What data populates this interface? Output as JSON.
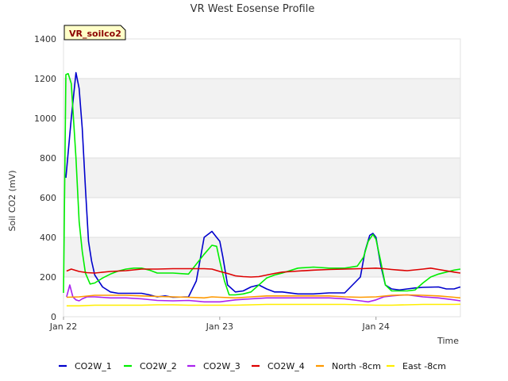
{
  "chart_data": {
    "type": "line",
    "title": "VR West Eosense Profile",
    "badge": "VR_soilco2",
    "xlabel": "Time",
    "ylabel": "Soil CO2 (mV)",
    "xlim": [
      0,
      2.54
    ],
    "ylim": [
      0,
      1400
    ],
    "yticks": [
      0,
      200,
      400,
      600,
      800,
      1000,
      1200,
      1400
    ],
    "xticks": [
      {
        "value": 0,
        "label": "Jan 22"
      },
      {
        "value": 1,
        "label": "Jan 23"
      },
      {
        "value": 2,
        "label": "Jan 24"
      }
    ],
    "bands": [
      [
        200,
        400
      ],
      [
        600,
        800
      ],
      [
        1000,
        1200
      ]
    ],
    "colors": {
      "band": "#f2f2f2",
      "grid": "#dddddd",
      "axis": "#999999",
      "badge_bg": "#ffffc8"
    },
    "series": [
      {
        "name": "CO2W_1",
        "color": "#0000cc",
        "x": [
          0.015,
          0.05,
          0.08,
          0.1,
          0.12,
          0.14,
          0.16,
          0.18,
          0.2,
          0.25,
          0.3,
          0.35,
          0.4,
          0.5,
          0.55,
          0.6,
          0.65,
          0.7,
          0.8,
          0.85,
          0.9,
          0.95,
          0.97,
          1.0,
          1.02,
          1.05,
          1.1,
          1.15,
          1.2,
          1.25,
          1.3,
          1.35,
          1.4,
          1.5,
          1.6,
          1.7,
          1.8,
          1.9,
          1.93,
          1.96,
          1.98,
          2.0,
          2.03,
          2.06,
          2.1,
          2.15,
          2.2,
          2.25,
          2.3,
          2.4,
          2.45,
          2.5,
          2.54
        ],
        "y": [
          700,
          1000,
          1230,
          1150,
          950,
          650,
          380,
          280,
          210,
          150,
          125,
          118,
          118,
          118,
          110,
          100,
          105,
          98,
          100,
          180,
          400,
          430,
          410,
          380,
          300,
          160,
          125,
          130,
          150,
          160,
          140,
          125,
          125,
          115,
          115,
          120,
          120,
          200,
          330,
          410,
          420,
          400,
          260,
          160,
          140,
          135,
          140,
          145,
          148,
          150,
          140,
          140,
          150
        ]
      },
      {
        "name": "CO2W_2",
        "color": "#00ee00",
        "x": [
          0,
          0.015,
          0.03,
          0.05,
          0.08,
          0.1,
          0.12,
          0.14,
          0.17,
          0.2,
          0.25,
          0.3,
          0.35,
          0.4,
          0.45,
          0.5,
          0.55,
          0.6,
          0.7,
          0.8,
          0.9,
          0.95,
          0.98,
          1.0,
          1.03,
          1.06,
          1.1,
          1.15,
          1.2,
          1.25,
          1.3,
          1.35,
          1.4,
          1.5,
          1.6,
          1.7,
          1.8,
          1.88,
          1.92,
          1.95,
          1.98,
          2.0,
          2.03,
          2.06,
          2.1,
          2.15,
          2.2,
          2.25,
          2.3,
          2.35,
          2.4,
          2.45,
          2.5,
          2.54
        ],
        "y": [
          120,
          1220,
          1225,
          1175,
          800,
          480,
          330,
          220,
          165,
          170,
          195,
          215,
          230,
          240,
          245,
          245,
          235,
          220,
          220,
          215,
          315,
          360,
          355,
          280,
          180,
          110,
          110,
          115,
          125,
          160,
          195,
          210,
          220,
          245,
          250,
          245,
          245,
          255,
          300,
          380,
          415,
          390,
          280,
          160,
          130,
          130,
          130,
          135,
          170,
          200,
          215,
          225,
          235,
          240
        ]
      },
      {
        "name": "CO2W_3",
        "color": "#aa22ee",
        "x": [
          0.02,
          0.04,
          0.06,
          0.08,
          0.1,
          0.12,
          0.15,
          0.2,
          0.3,
          0.4,
          0.5,
          0.6,
          0.7,
          0.8,
          0.9,
          1.0,
          1.1,
          1.2,
          1.3,
          1.4,
          1.5,
          1.6,
          1.7,
          1.8,
          1.9,
          1.95,
          2.0,
          2.05,
          2.1,
          2.15,
          2.2,
          2.3,
          2.4,
          2.5,
          2.54
        ],
        "y": [
          100,
          160,
          100,
          85,
          80,
          90,
          100,
          100,
          95,
          95,
          90,
          82,
          80,
          82,
          75,
          75,
          85,
          90,
          95,
          95,
          95,
          95,
          95,
          90,
          80,
          75,
          85,
          100,
          105,
          108,
          110,
          100,
          95,
          85,
          80
        ]
      },
      {
        "name": "CO2W_4",
        "color": "#dd0000",
        "x": [
          0.02,
          0.05,
          0.1,
          0.15,
          0.2,
          0.3,
          0.4,
          0.5,
          0.6,
          0.7,
          0.8,
          0.9,
          0.95,
          1.0,
          1.05,
          1.1,
          1.15,
          1.2,
          1.25,
          1.3,
          1.35,
          1.4,
          1.5,
          1.6,
          1.7,
          1.8,
          1.9,
          2.0,
          2.05,
          2.1,
          2.15,
          2.2,
          2.3,
          2.35,
          2.4,
          2.5,
          2.54
        ],
        "y": [
          230,
          240,
          228,
          222,
          220,
          228,
          232,
          240,
          240,
          242,
          242,
          242,
          240,
          228,
          218,
          206,
          202,
          200,
          202,
          210,
          218,
          225,
          230,
          235,
          238,
          240,
          242,
          245,
          242,
          238,
          235,
          232,
          240,
          245,
          238,
          225,
          220
        ]
      },
      {
        "name": "North -8cm",
        "color": "#ff9900",
        "x": [
          0.02,
          0.1,
          0.2,
          0.3,
          0.4,
          0.5,
          0.6,
          0.7,
          0.8,
          0.9,
          0.95,
          1.0,
          1.1,
          1.2,
          1.3,
          1.4,
          1.5,
          1.6,
          1.7,
          1.8,
          1.9,
          2.0,
          2.1,
          2.2,
          2.3,
          2.4,
          2.5,
          2.54
        ],
        "y": [
          98,
          100,
          108,
          108,
          108,
          105,
          102,
          100,
          98,
          95,
          100,
          98,
          95,
          100,
          105,
          105,
          105,
          105,
          105,
          100,
          98,
          100,
          108,
          110,
          108,
          105,
          98,
          95
        ]
      },
      {
        "name": "East -8cm",
        "color": "#ffee00",
        "x": [
          0.02,
          0.1,
          0.2,
          0.3,
          0.4,
          0.5,
          0.6,
          0.7,
          0.8,
          0.9,
          1.0,
          1.1,
          1.2,
          1.3,
          1.4,
          1.5,
          1.6,
          1.7,
          1.8,
          1.9,
          2.0,
          2.1,
          2.2,
          2.3,
          2.4,
          2.5,
          2.54
        ],
        "y": [
          55,
          55,
          58,
          58,
          58,
          58,
          60,
          60,
          58,
          58,
          58,
          58,
          60,
          62,
          62,
          62,
          62,
          62,
          62,
          60,
          58,
          58,
          60,
          62,
          62,
          62,
          63
        ]
      }
    ]
  }
}
